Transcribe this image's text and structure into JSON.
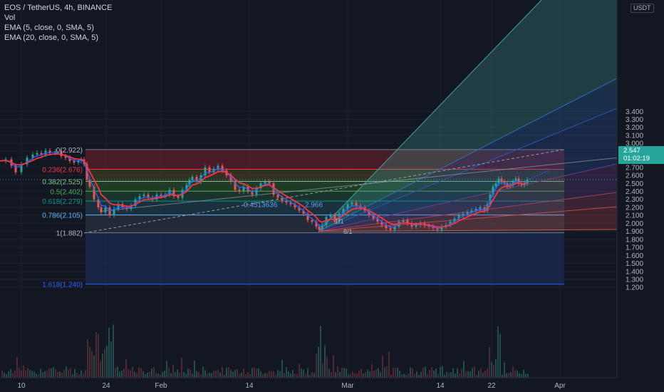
{
  "header": {
    "symbol_line": "EOS / TetherUS, 4h, BINANCE",
    "indicators": [
      "Vol",
      "EMA (5, close, 0, SMA, 5)",
      "EMA (20, close, 0, SMA, 5)"
    ]
  },
  "axis": {
    "currency": "USDT"
  },
  "current_price": {
    "price": "2.547",
    "countdown": "01:02:19"
  },
  "chart_data": {
    "type": "line",
    "title": "EOS / TetherUS, 4h, BINANCE",
    "ylabel": "USDT",
    "ylim": [
      1.16,
      3.46
    ],
    "y_ticks": [
      "3.400",
      "3.300",
      "3.200",
      "3.100",
      "3.000",
      "2.900",
      "2.800",
      "2.700",
      "2.600",
      "2.500",
      "2.400",
      "2.300",
      "2.200",
      "2.100",
      "2.000",
      "1.900",
      "1.800",
      "1.700",
      "1.600",
      "1.500",
      "1.400",
      "1.300",
      "1.200"
    ],
    "x_ticks": [
      "10",
      "24",
      "Feb",
      "14",
      "Mar",
      "14",
      "22",
      "Apr"
    ],
    "fib_levels": [
      {
        "label": "0(2.922)",
        "value": 2.922
      },
      {
        "label": "0.236(2.676)",
        "value": 2.676
      },
      {
        "label": "0.382(2.525)",
        "value": 2.525
      },
      {
        "label": "0.5(2.402)",
        "value": 2.402
      },
      {
        "label": "0.618(2.279)",
        "value": 2.279
      },
      {
        "label": "0.786(2.105)",
        "value": 2.105
      },
      {
        "label": "1(1.882)",
        "value": 1.882
      },
      {
        "label": "1.618(1.240)",
        "value": 1.24
      }
    ],
    "gann_labels": [
      "1/1",
      "8/1"
    ],
    "gann_ratio_label": "0.4513636",
    "gann_ratio_tail": "2.966",
    "price_points": [
      [
        0,
        2.78
      ],
      [
        8,
        2.8
      ],
      [
        16,
        2.72
      ],
      [
        22,
        2.64
      ],
      [
        30,
        2.74
      ],
      [
        38,
        2.82
      ],
      [
        46,
        2.86
      ],
      [
        52,
        2.88
      ],
      [
        58,
        2.86
      ],
      [
        64,
        2.91
      ],
      [
        70,
        2.88
      ],
      [
        78,
        2.9
      ],
      [
        86,
        2.84
      ],
      [
        92,
        2.82
      ],
      [
        98,
        2.78
      ],
      [
        104,
        2.76
      ],
      [
        110,
        2.78
      ],
      [
        114,
        2.8
      ],
      [
        118,
        2.74
      ],
      [
        122,
        2.55
      ],
      [
        126,
        2.46
      ],
      [
        132,
        2.3
      ],
      [
        138,
        2.2
      ],
      [
        142,
        2.14
      ],
      [
        148,
        2.2
      ],
      [
        154,
        2.1
      ],
      [
        160,
        2.18
      ],
      [
        166,
        2.24
      ],
      [
        172,
        2.2
      ],
      [
        178,
        2.18
      ],
      [
        184,
        2.22
      ],
      [
        190,
        2.3
      ],
      [
        196,
        2.34
      ],
      [
        202,
        2.36
      ],
      [
        208,
        2.32
      ],
      [
        214,
        2.3
      ],
      [
        220,
        2.36
      ],
      [
        226,
        2.34
      ],
      [
        232,
        2.36
      ],
      [
        238,
        2.42
      ],
      [
        244,
        2.34
      ],
      [
        250,
        2.32
      ],
      [
        256,
        2.42
      ],
      [
        262,
        2.48
      ],
      [
        266,
        2.54
      ],
      [
        270,
        2.58
      ],
      [
        276,
        2.52
      ],
      [
        282,
        2.6
      ],
      [
        288,
        2.7
      ],
      [
        294,
        2.64
      ],
      [
        300,
        2.68
      ],
      [
        306,
        2.72
      ],
      [
        312,
        2.66
      ],
      [
        318,
        2.6
      ],
      [
        324,
        2.52
      ],
      [
        330,
        2.42
      ],
      [
        336,
        2.4
      ],
      [
        342,
        2.46
      ],
      [
        348,
        2.4
      ],
      [
        354,
        2.36
      ],
      [
        360,
        2.44
      ],
      [
        366,
        2.5
      ],
      [
        372,
        2.52
      ],
      [
        378,
        2.5
      ],
      [
        384,
        2.36
      ],
      [
        390,
        2.32
      ],
      [
        396,
        2.28
      ],
      [
        402,
        2.26
      ],
      [
        408,
        2.24
      ],
      [
        414,
        2.2
      ],
      [
        420,
        2.16
      ],
      [
        426,
        2.12
      ],
      [
        432,
        2.04
      ],
      [
        438,
        2.02
      ],
      [
        444,
        1.96
      ],
      [
        448,
        1.92
      ],
      [
        452,
        1.98
      ],
      [
        458,
        2.08
      ],
      [
        464,
        2.1
      ],
      [
        470,
        2.02
      ],
      [
        476,
        2.12
      ],
      [
        482,
        2.18
      ],
      [
        488,
        2.24
      ],
      [
        494,
        2.26
      ],
      [
        500,
        2.22
      ],
      [
        506,
        2.2
      ],
      [
        512,
        2.16
      ],
      [
        518,
        2.1
      ],
      [
        524,
        2.06
      ],
      [
        530,
        2.02
      ],
      [
        536,
        1.98
      ],
      [
        542,
        1.94
      ],
      [
        548,
        1.92
      ],
      [
        554,
        1.96
      ],
      [
        560,
        2.02
      ],
      [
        566,
        2.04
      ],
      [
        572,
        2.0
      ],
      [
        578,
        1.96
      ],
      [
        584,
        1.98
      ],
      [
        590,
        2.0
      ],
      [
        596,
        1.97
      ],
      [
        602,
        1.96
      ],
      [
        608,
        1.94
      ],
      [
        614,
        1.92
      ],
      [
        620,
        1.96
      ],
      [
        626,
        1.98
      ],
      [
        632,
        2.02
      ],
      [
        638,
        2.06
      ],
      [
        644,
        2.1
      ],
      [
        650,
        2.12
      ],
      [
        656,
        2.14
      ],
      [
        662,
        2.16
      ],
      [
        668,
        2.18
      ],
      [
        674,
        2.2
      ],
      [
        680,
        2.16
      ],
      [
        684,
        2.24
      ],
      [
        688,
        2.36
      ],
      [
        692,
        2.46
      ],
      [
        696,
        2.5
      ],
      [
        700,
        2.56
      ],
      [
        704,
        2.52
      ],
      [
        708,
        2.5
      ],
      [
        712,
        2.46
      ],
      [
        716,
        2.48
      ],
      [
        720,
        2.52
      ],
      [
        724,
        2.56
      ],
      [
        728,
        2.5
      ],
      [
        732,
        2.48
      ],
      [
        736,
        2.5
      ],
      [
        740,
        2.547
      ]
    ],
    "series": [
      {
        "name": "EMA (5, close, 0, SMA, 5)",
        "color": "#2962ff"
      },
      {
        "name": "EMA (20, close, 0, SMA, 5)",
        "color": "#f23645"
      }
    ]
  }
}
